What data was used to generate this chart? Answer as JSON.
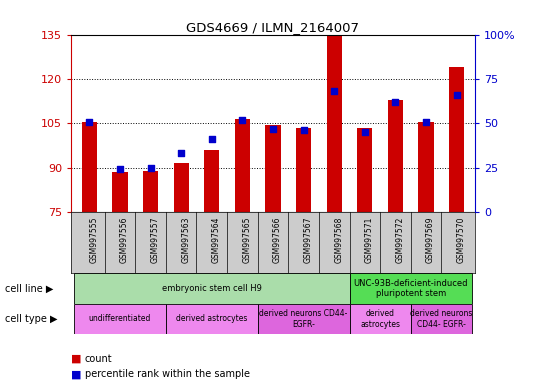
{
  "title": "GDS4669 / ILMN_2164007",
  "samples": [
    "GSM997555",
    "GSM997556",
    "GSM997557",
    "GSM997563",
    "GSM997564",
    "GSM997565",
    "GSM997566",
    "GSM997567",
    "GSM997568",
    "GSM997571",
    "GSM997572",
    "GSM997569",
    "GSM997570"
  ],
  "counts": [
    105.5,
    88.5,
    88.8,
    91.5,
    96.0,
    106.5,
    104.5,
    103.5,
    135.0,
    103.5,
    113.0,
    105.5,
    124.0
  ],
  "percentiles": [
    51,
    24,
    25,
    33,
    41,
    52,
    47,
    46,
    68,
    45,
    62,
    51,
    66
  ],
  "ylim_left": [
    75,
    135
  ],
  "ylim_right": [
    0,
    100
  ],
  "yticks_left": [
    75,
    90,
    105,
    120,
    135
  ],
  "yticks_right": [
    0,
    25,
    50,
    75,
    100
  ],
  "bar_color": "#cc0000",
  "dot_color": "#0000cc",
  "bar_width": 0.5,
  "cell_line_groups": [
    {
      "label": "embryonic stem cell H9",
      "start": 0,
      "end": 9,
      "color": "#aaddaa"
    },
    {
      "label": "UNC-93B-deficient-induced\npluripotent stem",
      "start": 9,
      "end": 13,
      "color": "#55dd55"
    }
  ],
  "cell_type_groups": [
    {
      "label": "undifferentiated",
      "start": 0,
      "end": 3,
      "color": "#ee88ee"
    },
    {
      "label": "derived astrocytes",
      "start": 3,
      "end": 6,
      "color": "#ee88ee"
    },
    {
      "label": "derived neurons CD44-\nEGFR-",
      "start": 6,
      "end": 9,
      "color": "#dd66dd"
    },
    {
      "label": "derived\nastrocytes",
      "start": 9,
      "end": 11,
      "color": "#ee88ee"
    },
    {
      "label": "derived neurons\nCD44- EGFR-",
      "start": 11,
      "end": 13,
      "color": "#dd66dd"
    }
  ],
  "tick_color_left": "#cc0000",
  "tick_color_right": "#0000cc",
  "xlabels_bg": "#cccccc",
  "chart_bg": "#ffffff"
}
